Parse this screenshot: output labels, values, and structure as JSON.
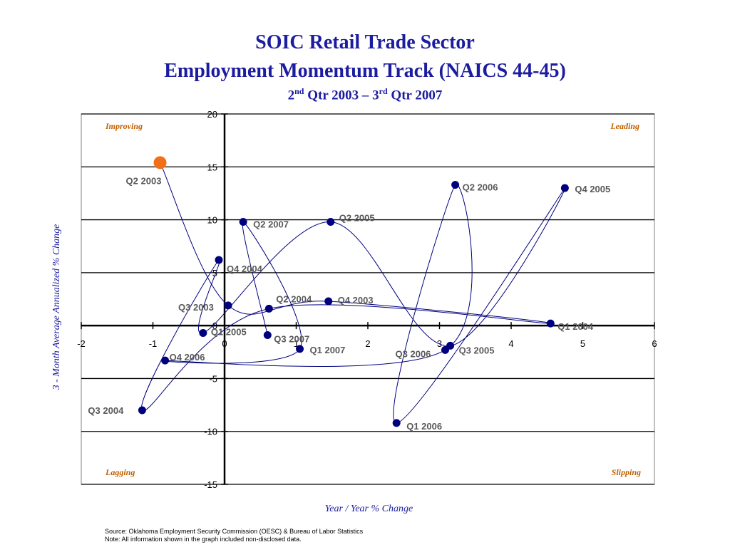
{
  "title_line1": "SOIC Retail Trade Sector",
  "title_line2": "Employment Momentum Track (NAICS 44-45)",
  "subtitle": {
    "a": "2",
    "a_sup": "nd",
    "b": " Qtr 2003 – 3",
    "b_sup": "rd",
    "c": " Qtr 2007"
  },
  "footer": {
    "source": "Source:  Oklahoma Employment Security Commission (OESC) & Bureau of Labor Statistics",
    "note": "Note: All information shown in the graph included non-disclosed data."
  },
  "chart_data": {
    "type": "scatter",
    "xlabel": "Year / Year % Change",
    "ylabel": "3 - Month Average Annualized % Change",
    "xlim": [
      -2,
      6
    ],
    "ylim": [
      -15,
      20
    ],
    "xticks": [
      -2,
      -1,
      0,
      1,
      2,
      3,
      4,
      5,
      6
    ],
    "yticks": [
      20,
      15,
      10,
      5,
      0,
      -5,
      -10,
      -15
    ],
    "grid": "horizontal",
    "quadrant_labels": {
      "top_left": "Improving",
      "top_right": "Leading",
      "bottom_left": "Lagging",
      "bottom_right": "Slipping"
    },
    "colors": {
      "point": "#00007f",
      "highlight": "#f07018",
      "line": "#00007f",
      "label": "#595959",
      "quadrant": "#c06000",
      "title": "#1c1ca0"
    },
    "points": [
      {
        "label": "Q2 2003",
        "x": -0.9,
        "y": 15.4
      },
      {
        "label": "Q3 2003",
        "x": 0.05,
        "y": 1.9
      },
      {
        "label": "Q4 2003",
        "x": 1.45,
        "y": 2.3
      },
      {
        "label": "Q1 2004",
        "x": 4.55,
        "y": 0.2
      },
      {
        "label": "Q2 2004",
        "x": 0.62,
        "y": 1.6
      },
      {
        "label": "Q3 2004",
        "x": -1.15,
        "y": -8.0
      },
      {
        "label": "Q4 2004",
        "x": -0.08,
        "y": 6.2
      },
      {
        "label": "Q1 2005",
        "x": -0.3,
        "y": -0.7
      },
      {
        "label": "Q2 2005",
        "x": 1.48,
        "y": 9.8
      },
      {
        "label": "Q3 2005",
        "x": 3.15,
        "y": -1.9
      },
      {
        "label": "Q4 2005",
        "x": 4.75,
        "y": 13.0
      },
      {
        "label": "Q1 2006",
        "x": 2.4,
        "y": -9.2
      },
      {
        "label": "Q2 2006",
        "x": 3.22,
        "y": 13.3
      },
      {
        "label": "Q3 2006",
        "x": 3.08,
        "y": -2.3
      },
      {
        "label": "Q4 2006",
        "x": -0.83,
        "y": -3.3
      },
      {
        "label": "Q1 2007",
        "x": 1.05,
        "y": -2.2
      },
      {
        "label": "Q2 2007",
        "x": 0.26,
        "y": 9.8
      },
      {
        "label": "Q3 2007",
        "x": 0.6,
        "y": -0.9
      }
    ]
  }
}
